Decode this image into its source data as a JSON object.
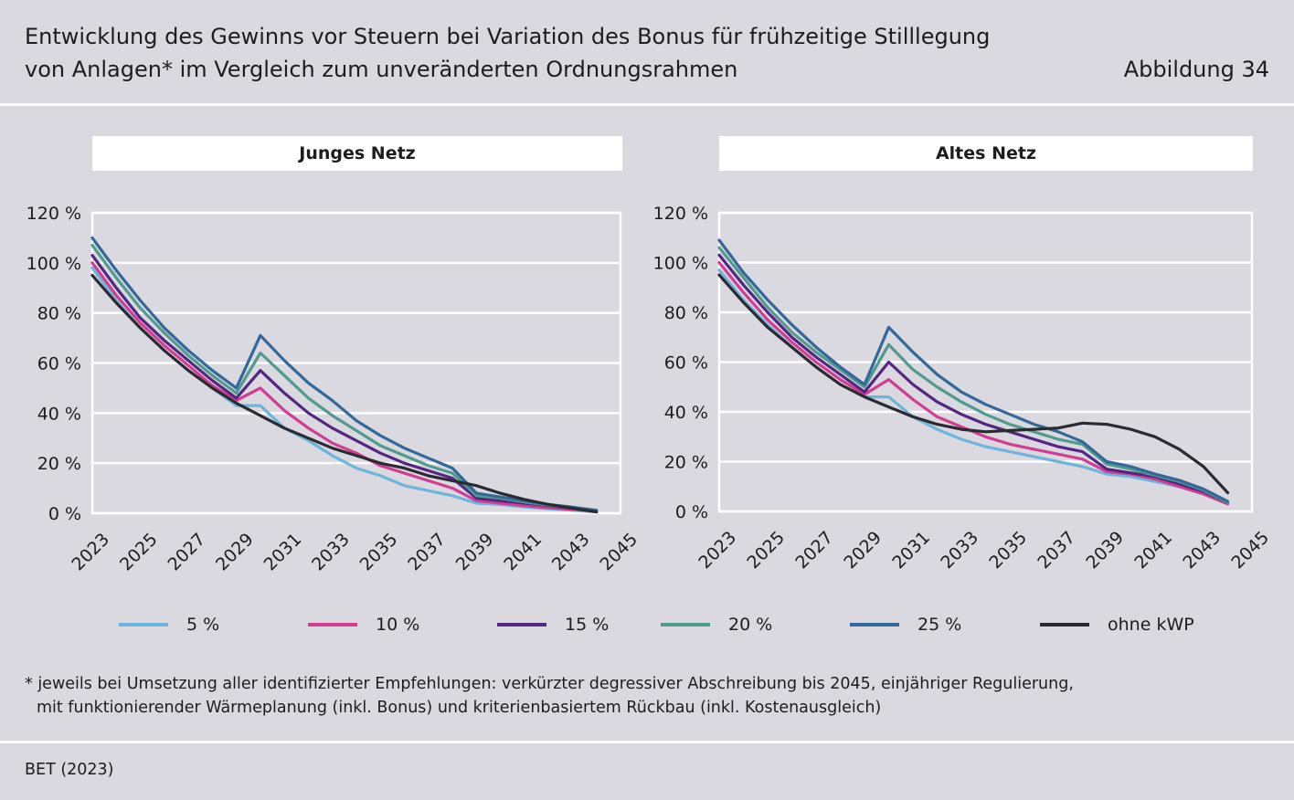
{
  "header": {
    "title_line1": "Entwicklung des Gewinns vor Steuern bei Variation des Bonus für frühzeitige Stilllegung",
    "title_line2": "von Anlagen* im Vergleich zum unveränderten Ordnungsrahmen",
    "figure_label": "Abbildung 34"
  },
  "legend": [
    {
      "label": "5 %",
      "color": "#6db5dc"
    },
    {
      "label": "10 %",
      "color": "#d23c91"
    },
    {
      "label": "15 %",
      "color": "#552582"
    },
    {
      "label": "20 %",
      "color": "#4f9c8c"
    },
    {
      "label": "25 %",
      "color": "#32689a"
    },
    {
      "label": "ohne kWP",
      "color": "#2b2a30"
    }
  ],
  "footnote": {
    "line1": "* jeweils bei Umsetzung aller identifizierter Empfehlungen: verkürzter degressiver Abschreibung bis 2045, einjähriger Regulierung,",
    "line2": "mit funktionierender Wärmeplanung (inkl. Bonus) und kriterienbasiertem Rückbau (inkl. Kostenausgleich)"
  },
  "source": "BET (2023)",
  "chart_data": [
    {
      "type": "line",
      "title": "Junges Netz",
      "x": [
        2023,
        2024,
        2025,
        2026,
        2027,
        2028,
        2029,
        2030,
        2031,
        2032,
        2033,
        2034,
        2035,
        2036,
        2037,
        2038,
        2039,
        2040,
        2041,
        2042,
        2043,
        2044
      ],
      "xticks": [
        2023,
        2025,
        2027,
        2029,
        2031,
        2033,
        2035,
        2037,
        2039,
        2041,
        2043,
        2045
      ],
      "xticklabels": [
        "2023",
        "2025",
        "2027",
        "2029",
        "2031",
        "2033",
        "2035",
        "2037",
        "2039",
        "2041",
        "2043",
        "2045"
      ],
      "xlim": [
        2023,
        2045
      ],
      "ylim": [
        0,
        120
      ],
      "yticks": [
        0,
        20,
        40,
        60,
        80,
        100,
        120
      ],
      "yticklabels": [
        "0 %",
        "20 %",
        "40 %",
        "60 %",
        "80 %",
        "100 %",
        "120 %"
      ],
      "series": [
        {
          "name": "5 %",
          "color": "#6db5dc",
          "values": [
            98,
            85,
            74,
            65,
            57,
            50,
            43,
            43,
            34,
            29,
            23,
            18,
            15,
            11,
            9,
            7,
            4,
            3.5,
            2.5,
            1.8,
            1.2,
            0.5
          ]
        },
        {
          "name": "10 %",
          "color": "#d23c91",
          "values": [
            100,
            87,
            76,
            67,
            59,
            51,
            45,
            50,
            41,
            34,
            28,
            24,
            19,
            16,
            13,
            10,
            5,
            4,
            3,
            2.2,
            1.5,
            0.8
          ]
        },
        {
          "name": "15 %",
          "color": "#552582",
          "values": [
            103,
            90,
            78,
            69,
            61,
            53,
            46,
            57,
            48,
            40,
            34,
            29,
            24,
            20,
            17,
            14,
            6,
            5,
            4,
            3,
            2,
            1
          ]
        },
        {
          "name": "20 %",
          "color": "#4f9c8c",
          "values": [
            107,
            94,
            82,
            72,
            63,
            55,
            48,
            64,
            55,
            46,
            39,
            33,
            27,
            23,
            19,
            16,
            7,
            6,
            4.5,
            3.2,
            2.2,
            1.1
          ]
        },
        {
          "name": "25 %",
          "color": "#32689a",
          "values": [
            110,
            97,
            85,
            74,
            65,
            57,
            50,
            71,
            61,
            52,
            45,
            37,
            31,
            26,
            22,
            18,
            8,
            6.5,
            5,
            3.5,
            2.4,
            1.2
          ]
        },
        {
          "name": "ohne kWP",
          "color": "#2b2a30",
          "values": [
            95,
            84,
            74,
            65,
            57,
            50,
            44,
            39,
            34,
            30,
            26,
            23,
            20,
            18,
            15,
            13,
            11,
            8,
            5.5,
            3.5,
            2,
            0.5
          ]
        }
      ]
    },
    {
      "type": "line",
      "title": "Altes Netz",
      "x": [
        2023,
        2024,
        2025,
        2026,
        2027,
        2028,
        2029,
        2030,
        2031,
        2032,
        2033,
        2034,
        2035,
        2036,
        2037,
        2038,
        2039,
        2040,
        2041,
        2042,
        2043,
        2044
      ],
      "xticks": [
        2023,
        2025,
        2027,
        2029,
        2031,
        2033,
        2035,
        2037,
        2039,
        2041,
        2043,
        2045
      ],
      "xticklabels": [
        "2023",
        "2025",
        "2027",
        "2029",
        "2031",
        "2033",
        "2035",
        "2037",
        "2039",
        "2041",
        "2043",
        "2045"
      ],
      "xlim": [
        2023,
        2045
      ],
      "ylim": [
        0,
        120
      ],
      "yticks": [
        0,
        20,
        40,
        60,
        80,
        100,
        120
      ],
      "yticklabels": [
        "0 %",
        "20 %",
        "40 %",
        "60 %",
        "80 %",
        "100 %",
        "120 %"
      ],
      "series": [
        {
          "name": "5 %",
          "color": "#6db5dc",
          "values": [
            97,
            85,
            75,
            66,
            58,
            51,
            46,
            46,
            38,
            33,
            29,
            26,
            24,
            22,
            20,
            18,
            15,
            14,
            12,
            10,
            7,
            3
          ]
        },
        {
          "name": "10 %",
          "color": "#d23c91",
          "values": [
            100,
            88,
            77,
            68,
            60,
            53,
            47,
            53,
            45,
            38,
            34,
            30,
            27,
            25,
            23,
            21,
            16,
            15,
            13,
            10,
            7,
            3
          ]
        },
        {
          "name": "15 %",
          "color": "#552582",
          "values": [
            103,
            91,
            80,
            70,
            62,
            55,
            48,
            60,
            51,
            44,
            39,
            35,
            32,
            29,
            26,
            24,
            17,
            15.5,
            14,
            11,
            8,
            3.5
          ]
        },
        {
          "name": "20 %",
          "color": "#4f9c8c",
          "values": [
            106,
            94,
            82,
            72,
            64,
            57,
            50,
            67,
            57,
            50,
            44,
            39,
            35,
            32,
            29,
            27,
            19,
            17,
            14.5,
            12,
            8.5,
            3.5
          ]
        },
        {
          "name": "25 %",
          "color": "#32689a",
          "values": [
            109,
            96,
            85,
            75,
            66,
            58,
            51,
            74,
            64,
            55,
            48,
            43,
            39,
            35,
            32,
            28,
            20,
            18,
            15,
            12.5,
            9,
            4
          ]
        },
        {
          "name": "ohne kWP",
          "color": "#2b2a30",
          "values": [
            95,
            84,
            74,
            66,
            58,
            51,
            46,
            42,
            38,
            35,
            33,
            32,
            32.5,
            33,
            33.5,
            35.5,
            35,
            33,
            30,
            25,
            18,
            7.5
          ]
        }
      ]
    }
  ]
}
